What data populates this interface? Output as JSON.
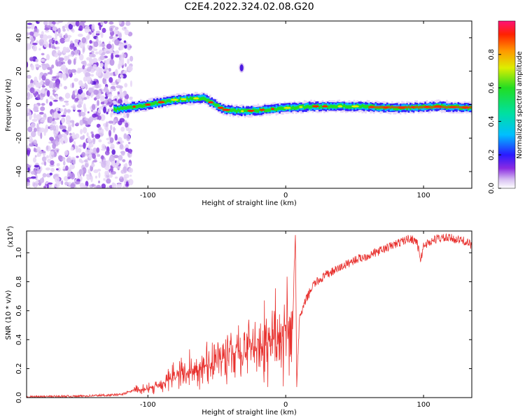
{
  "title": "C2E4.2022.324.02.08.G20",
  "chart_data": [
    {
      "type": "heatmap",
      "xlabel": "Height of straight line (km)",
      "ylabel": "Frequency (Hz)",
      "xlim": [
        -188,
        135
      ],
      "ylim": [
        -50,
        50
      ],
      "xticks": [
        -100,
        0,
        100
      ],
      "xtick_labels": [
        "-100",
        "0",
        "100"
      ],
      "yticks": [
        -40,
        -20,
        0,
        20,
        40
      ],
      "ytick_labels": [
        "-40",
        "-20",
        "0",
        "20",
        "40"
      ],
      "colorbar": {
        "label": "Normalized spectral amplitude",
        "range": [
          0,
          1
        ],
        "ticks": [
          0.0,
          0.2,
          0.4,
          0.6,
          0.8
        ],
        "tick_labels": [
          "0.0",
          "0.2",
          "0.4",
          "0.6",
          "0.8"
        ]
      },
      "features": {
        "noise_region_x": [
          -188,
          -112
        ],
        "ridge": [
          [
            -125,
            -3
          ],
          [
            -100,
            0
          ],
          [
            -80,
            3
          ],
          [
            -60,
            4
          ],
          [
            -45,
            -3
          ],
          [
            -30,
            -4
          ],
          [
            -15,
            -3
          ],
          [
            0,
            -2
          ],
          [
            20,
            -1
          ],
          [
            50,
            -1
          ],
          [
            80,
            -2
          ],
          [
            110,
            -1
          ],
          [
            135,
            -2
          ]
        ],
        "blob": {
          "x": -32,
          "y": 22
        }
      }
    },
    {
      "type": "line",
      "xlabel": "Height of straight line (km)",
      "ylabel": "SNR (10 * v/v)",
      "y_multiplier_label": "(x10",
      "y_multiplier_exp": "4",
      "y_multiplier_close": ")",
      "xlim": [
        -188,
        135
      ],
      "ylim": [
        0,
        1.15
      ],
      "xticks": [
        -100,
        0,
        100
      ],
      "xtick_labels": [
        "-100",
        "0",
        "100"
      ],
      "yticks": [
        0.0,
        0.2,
        0.4,
        0.6,
        0.8,
        1.0
      ],
      "ytick_labels": [
        "0.0",
        "0.2",
        "0.4",
        "0.6",
        "0.8",
        "1.0"
      ],
      "series": [
        {
          "color": "#e8312e",
          "x": [
            -188,
            -150,
            -120,
            -110,
            -100,
            -90,
            -80,
            -70,
            -60,
            -50,
            -40,
            -30,
            -20,
            -10,
            0,
            5,
            7,
            8,
            10,
            15,
            20,
            30,
            40,
            50,
            60,
            70,
            80,
            90,
            95,
            98,
            100,
            110,
            120,
            130,
            135
          ],
          "y": [
            0.005,
            0.01,
            0.02,
            0.05,
            0.06,
            0.1,
            0.15,
            0.18,
            0.22,
            0.25,
            0.3,
            0.33,
            0.35,
            0.4,
            0.45,
            0.5,
            1.15,
            0.1,
            0.55,
            0.68,
            0.78,
            0.85,
            0.9,
            0.95,
            0.98,
            1.02,
            1.06,
            1.1,
            1.08,
            0.95,
            1.05,
            1.1,
            1.1,
            1.08,
            1.05
          ]
        }
      ]
    }
  ]
}
